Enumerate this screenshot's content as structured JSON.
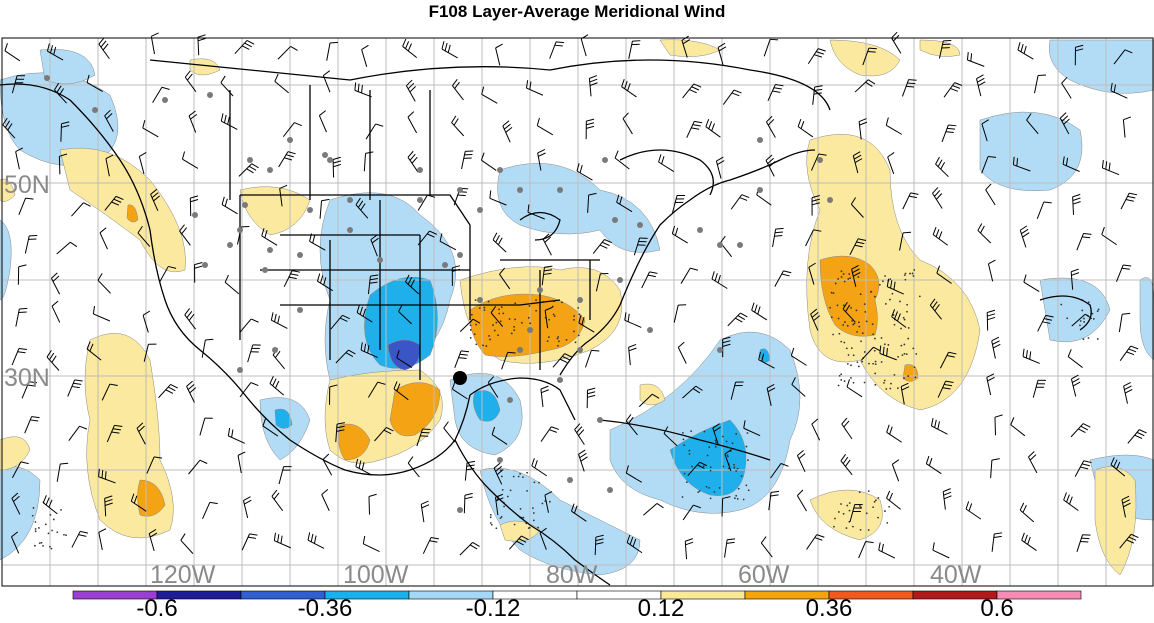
{
  "title": "F108 Layer-Average Meridional Wind",
  "map": {
    "lat_labels": [
      "50N",
      "30N"
    ],
    "lon_labels": [
      "120W",
      "100W",
      "80W",
      "60W",
      "40W"
    ],
    "label_color": "#8a8a8a",
    "grid_color": "#bdbdbd"
  },
  "colorbar": {
    "colors": [
      "#9a3fd3",
      "#1d1d9a",
      "#2f5fd0",
      "#1ab0ee",
      "#a5d8f7",
      "#ffffff",
      "#ffffff",
      "#faea98",
      "#f4a40e",
      "#ef5a1d",
      "#b01a1a",
      "#f48cb4"
    ],
    "tick_labels": [
      "-0.6",
      "-0.36",
      "-0.12",
      "0.12",
      "0.36",
      "0.6"
    ]
  },
  "palette": {
    "strong_neg": "#3b54c6",
    "neg": "#1fb0ec",
    "weak_neg": "#b2dcf6",
    "weak_pos": "#fbe9a0",
    "pos": "#f3a313"
  }
}
